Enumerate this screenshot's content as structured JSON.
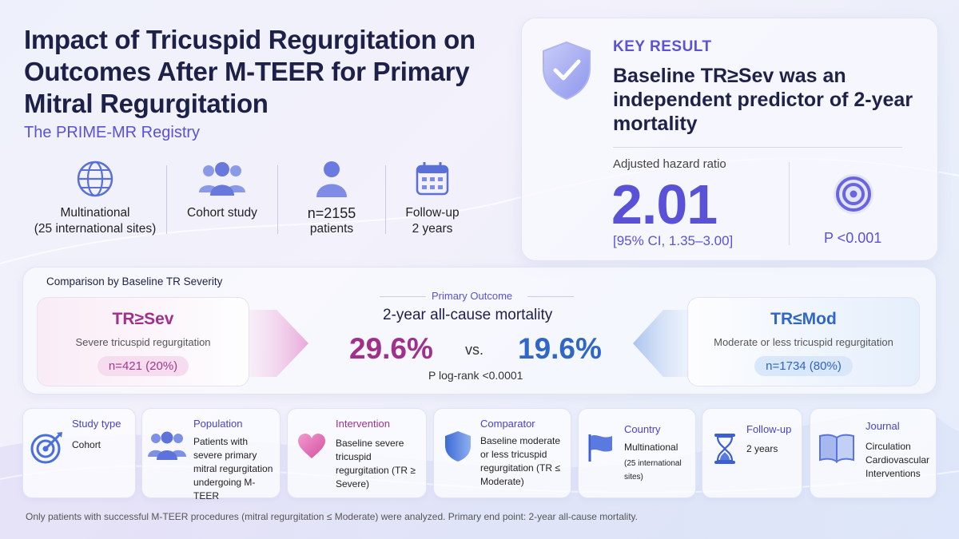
{
  "title": "Impact of Tricuspid Regurgitation on Outcomes After M-TEER for Primary Mitral Regurgitation",
  "subtitle": "The PRIME-MR Registry",
  "facts": [
    {
      "icon": "globe-icon",
      "line1": "Multinational",
      "line2": "(25 international sites)"
    },
    {
      "icon": "people-icon",
      "line1": "Cohort study",
      "line2": ""
    },
    {
      "icon": "person-icon",
      "line1": "n=2155",
      "line2": "patients"
    },
    {
      "icon": "calendar-icon",
      "line1": "Follow-up",
      "line2": "2 years"
    }
  ],
  "key_result": {
    "label": "KEY RESULT",
    "text": "Baseline TR≥Sev was an independent predictor of 2-year mortality",
    "ahr_label": "Adjusted hazard ratio",
    "ahr_value": "2.01",
    "ci": "[95% CI, 1.35–3.00]",
    "p_value": "P <0.001"
  },
  "comparison": {
    "label": "Comparison by Baseline TR Severity",
    "left": {
      "title": "TR≥Sev",
      "sub": "Severe tricuspid regurgitation",
      "n": "n=421 (20%)"
    },
    "right": {
      "title": "TR≤Mod",
      "sub": "Moderate or less tricuspid regurgitation",
      "n": "n=1734 (80%)"
    },
    "primary_outcome_label": "Primary Outcome",
    "primary_outcome": "2-year all-cause mortality",
    "left_value": "29.6%",
    "vs": "vs.",
    "right_value": "19.6%",
    "p_logrank": "P log-rank <0.0001"
  },
  "cards": [
    {
      "icon": "target-icon",
      "title": "Study type",
      "text": "Cohort"
    },
    {
      "icon": "people-icon",
      "title": "Population",
      "text": "Patients with severe primary mitral regurgitation undergoing M-TEER"
    },
    {
      "icon": "heart-icon",
      "title": "Intervention",
      "text": "Baseline severe tricuspid regurgitation (TR ≥ Severe)"
    },
    {
      "icon": "shield-icon",
      "title": "Comparator",
      "text": "Baseline moderate or less tricuspid regurgitation (TR ≤ Moderate)"
    },
    {
      "icon": "flag-icon",
      "title": "Country",
      "text": "Multinational",
      "text2": "(25 international sites)"
    },
    {
      "icon": "hourglass-icon",
      "title": "Follow-up",
      "text": "2 years"
    },
    {
      "icon": "book-icon",
      "title": "Journal",
      "text": "Circulation Cardiovascular Interventions"
    }
  ],
  "footnote": "Only patients with successful M-TEER procedures (mitral regurgitation ≤ Moderate) were analyzed. Primary end point: 2-year all-cause mortality.",
  "colors": {
    "accent": "#5a52d6",
    "sev": "#a0308a",
    "mod": "#2f66c8",
    "title": "#1e2147"
  }
}
